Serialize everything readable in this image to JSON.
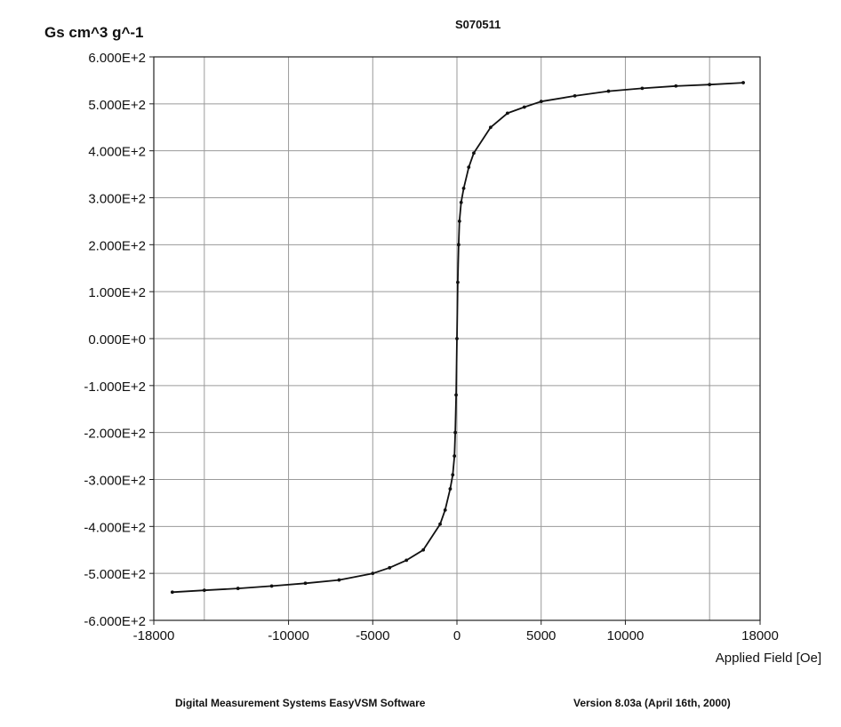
{
  "chart_data": {
    "type": "line",
    "title": "S070511",
    "ylabel": "Gs cm^3 g^-1",
    "xlabel": "Applied Field [Oe]",
    "xlim": [
      -18000,
      18000
    ],
    "ylim": [
      -600,
      600
    ],
    "x_ticks": [
      -18000,
      -10000,
      -5000,
      0,
      5000,
      10000,
      18000
    ],
    "x_tick_labels": [
      "-18000",
      "-10000",
      "-5000",
      "0",
      "5000",
      "10000",
      "18000"
    ],
    "y_ticks": [
      600,
      500,
      400,
      300,
      200,
      100,
      0,
      -100,
      -200,
      -300,
      -400,
      -500,
      -600
    ],
    "y_tick_labels": [
      "6.000E+2",
      "5.000E+2",
      "4.000E+2",
      "3.000E+2",
      "2.000E+2",
      "1.000E+2",
      "0.000E+0",
      "-1.000E+2",
      "-2.000E+2",
      "-3.000E+2",
      "-4.000E+2",
      "-5.000E+2",
      "-6.000E+2"
    ],
    "grid": true,
    "series": [
      {
        "x": [
          -16900,
          -15000,
          -13000,
          -11000,
          -9000,
          -7000,
          -5000,
          -4000,
          -3000,
          -2000,
          -1000,
          -700,
          -400,
          -250,
          -150,
          -100,
          -50,
          0,
          50,
          100,
          150,
          250,
          400,
          700,
          1000,
          2000,
          3000,
          4000,
          5000,
          7000,
          9000,
          11000,
          13000,
          15000,
          17000
        ],
        "y": [
          -540,
          -536,
          -532,
          -527,
          -521,
          -514,
          -500,
          -488,
          -472,
          -450,
          -395,
          -365,
          -320,
          -290,
          -250,
          -200,
          -120,
          0,
          120,
          200,
          250,
          290,
          320,
          365,
          395,
          450,
          480,
          493,
          505,
          517,
          527,
          533,
          538,
          541,
          545
        ]
      }
    ]
  },
  "footer": {
    "software": "Digital Measurement Systems EasyVSM Software",
    "version": "Version 8.03a (April 16th,  2000)"
  },
  "colors": {
    "line": "#111111",
    "grid": "#9a9a9a",
    "axes": "#222222"
  }
}
